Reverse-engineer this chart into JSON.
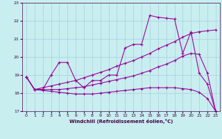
{
  "bg_color": "#c8eef0",
  "grid_color": "#aaccdd",
  "line_color": "#990099",
  "xlabel": "Windchill (Refroidissement éolien,°C)",
  "xlim": [
    -0.5,
    23.5
  ],
  "ylim": [
    17,
    23
  ],
  "yticks": [
    17,
    18,
    19,
    20,
    21,
    22,
    23
  ],
  "xticks": [
    0,
    1,
    2,
    3,
    4,
    5,
    6,
    7,
    8,
    9,
    10,
    11,
    12,
    13,
    14,
    15,
    16,
    17,
    18,
    19,
    20,
    21,
    22,
    23
  ],
  "line1_x": [
    0,
    1,
    2,
    3,
    4,
    5,
    6,
    7,
    8,
    9,
    10,
    11,
    12,
    13,
    14,
    15,
    16,
    17,
    18,
    19,
    20,
    21,
    22,
    23
  ],
  "line1_y": [
    18.9,
    18.2,
    18.2,
    19.0,
    19.7,
    19.7,
    18.7,
    18.3,
    18.7,
    18.7,
    19.0,
    19.0,
    20.5,
    20.7,
    20.7,
    22.3,
    22.2,
    22.15,
    22.1,
    20.2,
    21.4,
    19.1,
    18.5,
    17.0
  ],
  "line2_x": [
    0,
    1,
    2,
    3,
    4,
    5,
    6,
    7,
    8,
    9,
    10,
    11,
    12,
    13,
    14,
    15,
    16,
    17,
    18,
    19,
    20,
    21,
    22,
    23
  ],
  "line2_y": [
    18.9,
    18.2,
    18.3,
    18.4,
    18.5,
    18.6,
    18.7,
    18.85,
    19.0,
    19.15,
    19.3,
    19.5,
    19.65,
    19.8,
    20.0,
    20.2,
    20.45,
    20.65,
    20.85,
    21.1,
    21.3,
    21.4,
    21.45,
    21.5
  ],
  "line3_x": [
    0,
    1,
    2,
    3,
    4,
    5,
    6,
    7,
    8,
    9,
    10,
    11,
    12,
    13,
    14,
    15,
    16,
    17,
    18,
    19,
    20,
    21,
    22,
    23
  ],
  "line3_y": [
    18.9,
    18.2,
    18.2,
    18.2,
    18.2,
    18.25,
    18.3,
    18.35,
    18.45,
    18.55,
    18.65,
    18.75,
    18.85,
    18.95,
    19.1,
    19.25,
    19.45,
    19.6,
    19.8,
    20.05,
    20.2,
    20.15,
    19.1,
    17.0
  ],
  "line4_x": [
    0,
    1,
    2,
    3,
    4,
    5,
    6,
    7,
    8,
    9,
    10,
    11,
    12,
    13,
    14,
    15,
    16,
    17,
    18,
    19,
    20,
    21,
    22,
    23
  ],
  "line4_y": [
    18.9,
    18.2,
    18.15,
    18.1,
    18.05,
    18.0,
    17.95,
    17.95,
    17.95,
    18.0,
    18.05,
    18.1,
    18.15,
    18.2,
    18.25,
    18.3,
    18.3,
    18.3,
    18.3,
    18.25,
    18.2,
    18.05,
    17.7,
    17.0
  ]
}
